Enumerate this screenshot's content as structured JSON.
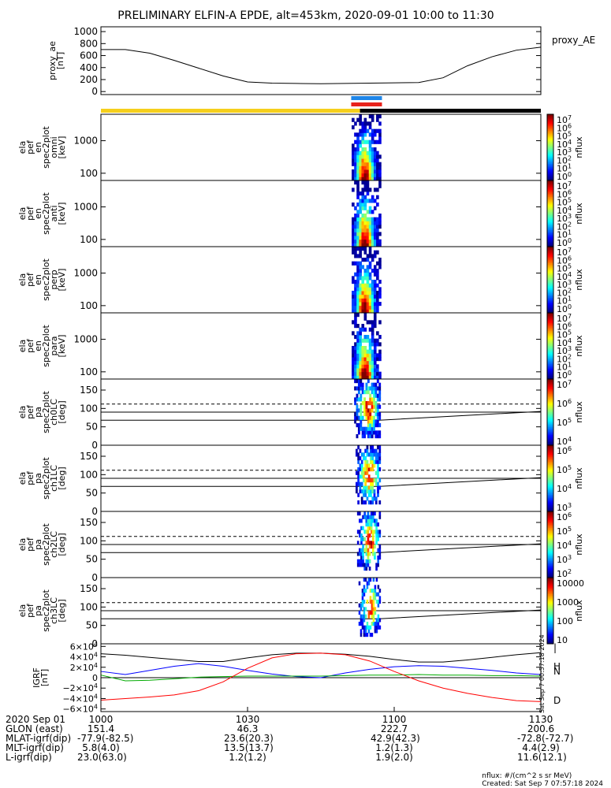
{
  "title": "PRELIMINARY ELFIN-A EPDE, alt=453km, 2020-09-01 10:00 to 11:30",
  "colors": {
    "sunlight_bar": "#f5cf1c",
    "shadow_bar": "#000000",
    "science_zone_blue": "#1f86e8",
    "science_zone_red": "#e8231c",
    "dipole_b": "#000000",
    "dipole_h": "#0000ff",
    "dipole_n": "#00aa00",
    "dipole_d": "#ff0000"
  },
  "chart_data": [
    {
      "type": "line",
      "name": "proxy_AE",
      "ylabel_lines": [
        "proxy_ae",
        "[nT]"
      ],
      "right_label": "proxy_AE",
      "ylim": [
        -50,
        1080
      ],
      "yticks": [
        0,
        200,
        400,
        600,
        800,
        1000
      ],
      "x": [
        0,
        5,
        10,
        15,
        20,
        25,
        30,
        35,
        40,
        45,
        50,
        55,
        60,
        65,
        70,
        75,
        80,
        85,
        90
      ],
      "values": [
        700,
        700,
        640,
        520,
        390,
        260,
        160,
        140,
        135,
        130,
        135,
        140,
        145,
        150,
        230,
        430,
        580,
        690,
        740
      ]
    },
    {
      "type": "heatmap",
      "name": "ela_pef_en_spec2plot_omni",
      "ylabel_lines": [
        "ela",
        "pef",
        "en",
        "spec2plot",
        "omni",
        "[keV]"
      ],
      "yscale": "log",
      "ylim_keV": [
        60,
        6500
      ],
      "yticks": [
        "100",
        "1000"
      ],
      "colorbar_label": "nflux",
      "colorbar_ticks": [
        "10^7",
        "10^6",
        "10^5",
        "10^4",
        "10^3",
        "10^2",
        "10^1",
        "10^0"
      ]
    },
    {
      "type": "heatmap",
      "name": "ela_pef_en_spec2plot_anti",
      "ylabel_lines": [
        "ela",
        "pef",
        "en",
        "spec2plot",
        "anti",
        "[keV]"
      ],
      "yscale": "log",
      "ylim_keV": [
        60,
        6500
      ],
      "yticks": [
        "100",
        "1000"
      ],
      "colorbar_label": "nflux",
      "colorbar_ticks": [
        "10^7",
        "10^6",
        "10^5",
        "10^4",
        "10^3",
        "10^2",
        "10^1",
        "10^0"
      ]
    },
    {
      "type": "heatmap",
      "name": "ela_pef_en_spec2plot_perp",
      "ylabel_lines": [
        "ela",
        "pef",
        "en",
        "spec2plot",
        "perp",
        "[keV]"
      ],
      "yscale": "log",
      "ylim_keV": [
        60,
        6500
      ],
      "yticks": [
        "100",
        "1000"
      ],
      "colorbar_label": "nflux",
      "colorbar_ticks": [
        "10^7",
        "10^6",
        "10^5",
        "10^4",
        "10^3",
        "10^2",
        "10^1",
        "10^0"
      ]
    },
    {
      "type": "heatmap",
      "name": "ela_pef_en_spec2plot_para",
      "ylabel_lines": [
        "ela",
        "pef",
        "en",
        "spec2plot",
        "para",
        "[keV]"
      ],
      "yscale": "log",
      "ylim_keV": [
        60,
        6500
      ],
      "yticks": [
        "100",
        "1000"
      ],
      "colorbar_label": "nflux",
      "colorbar_ticks": [
        "10^7",
        "10^6",
        "10^5",
        "10^4",
        "10^3",
        "10^2",
        "10^1",
        "10^0"
      ]
    },
    {
      "type": "heatmap",
      "name": "ela_pef_pa_spec2plot_ch0LC",
      "ylabel_lines": [
        "ela",
        "pef",
        "pa",
        "spec2plot",
        "ch0LC",
        "[deg]"
      ],
      "yscale": "linear",
      "ylim": [
        0,
        180
      ],
      "yticks": [
        "0",
        "50",
        "100",
        "150"
      ],
      "colorbar_label": "nflux",
      "colorbar_ticks": [
        "10^7",
        "10^6",
        "10^5",
        "10^4"
      ]
    },
    {
      "type": "heatmap",
      "name": "ela_pef_pa_spec2plot_ch1LC",
      "ylabel_lines": [
        "ela",
        "pef",
        "pa",
        "spec2plot",
        "ch1LC",
        "[deg]"
      ],
      "yscale": "linear",
      "ylim": [
        0,
        180
      ],
      "yticks": [
        "0",
        "50",
        "100",
        "150"
      ],
      "colorbar_label": "nflux",
      "colorbar_ticks": [
        "10^6",
        "10^5",
        "10^4",
        "10^3"
      ]
    },
    {
      "type": "heatmap",
      "name": "ela_pef_pa_spec2plot_ch2LC",
      "ylabel_lines": [
        "ela",
        "pef",
        "pa",
        "spec2plot",
        "ch2LC",
        "[deg]"
      ],
      "yscale": "linear",
      "ylim": [
        0,
        180
      ],
      "yticks": [
        "0",
        "50",
        "100",
        "150"
      ],
      "colorbar_label": "nflux",
      "colorbar_ticks": [
        "10^6",
        "10^5",
        "10^4",
        "10^3",
        "10^2"
      ]
    },
    {
      "type": "heatmap",
      "name": "ela_pef_pa_spec2plot_ch3LC",
      "ylabel_lines": [
        "ela",
        "pef",
        "pa",
        "spec2plot",
        "ch3LC",
        "[deg]"
      ],
      "yscale": "linear",
      "ylim": [
        0,
        180
      ],
      "yticks": [
        "0",
        "50",
        "100",
        "150"
      ],
      "colorbar_label": "nflux",
      "colorbar_ticks": [
        "10000",
        "1000",
        "100",
        "10"
      ]
    },
    {
      "type": "line",
      "name": "IGRF",
      "ylabel_lines": [
        "IGRF",
        "[nT]"
      ],
      "ylim": [
        -65000,
        65000
      ],
      "yticks": [
        "6×10^4",
        "4×10^4",
        "2×10^4",
        "0",
        "−2×10^4",
        "−4×10^4",
        "−6×10^4"
      ],
      "x": [
        0,
        5,
        10,
        15,
        20,
        25,
        30,
        35,
        40,
        45,
        50,
        55,
        60,
        65,
        70,
        75,
        80,
        85,
        90
      ],
      "series": [
        {
          "name": "B",
          "label": "|",
          "values": [
            46000,
            43000,
            39000,
            35000,
            31000,
            31000,
            38000,
            44000,
            47000,
            47000,
            45000,
            41000,
            35000,
            30000,
            30000,
            34000,
            39000,
            44000,
            48000
          ]
        },
        {
          "name": "H",
          "label": "H",
          "values": [
            12000,
            6000,
            14000,
            22000,
            27000,
            22000,
            14000,
            7000,
            2000,
            0,
            9000,
            16000,
            21000,
            23000,
            22000,
            18000,
            14000,
            9000,
            6000
          ]
        },
        {
          "name": "N",
          "label": "N",
          "values": [
            5000,
            -6000,
            -5000,
            -2000,
            1000,
            2000,
            3000,
            3000,
            3000,
            3000,
            4000,
            5000,
            5000,
            6000,
            5000,
            5000,
            4000,
            4000,
            3000
          ]
        },
        {
          "name": "D",
          "label": "D",
          "values": [
            -43000,
            -40000,
            -37000,
            -33000,
            -25000,
            -8000,
            18000,
            38000,
            46000,
            47000,
            44000,
            32000,
            12000,
            -6000,
            -20000,
            -30000,
            -38000,
            -44000,
            -46000
          ]
        }
      ]
    }
  ],
  "time_axis": {
    "ticks": [
      "1000",
      "1030",
      "1100",
      "1130"
    ],
    "row_labels": [
      "2020 Sep 01",
      "GLON (east)",
      "MLAT-igrf(dip)",
      "MLT-igrf(dip)",
      "L-igrf(dip)"
    ],
    "columns": [
      [
        "1000",
        "151.4",
        "-77.9(-82.5)",
        "5.8(4.0)",
        "23.0(63.0)"
      ],
      [
        "1030",
        "46.3",
        "23.6(20.3)",
        "13.5(13.7)",
        "1.2(1.2)"
      ],
      [
        "1100",
        "222.7",
        "42.9(42.3)",
        "1.2(1.3)",
        "1.9(2.0)"
      ],
      [
        "1130",
        "200.6",
        "-72.8(-72.7)",
        "4.4(2.9)",
        "11.6(12.1)"
      ]
    ]
  },
  "footer": {
    "units": "nflux: #/(cm^2 s sr MeV)",
    "created": "Created: Sat Sep  7 07:57:18 2024",
    "stamp": "Sat Sep  7 00:57:18 2024"
  }
}
